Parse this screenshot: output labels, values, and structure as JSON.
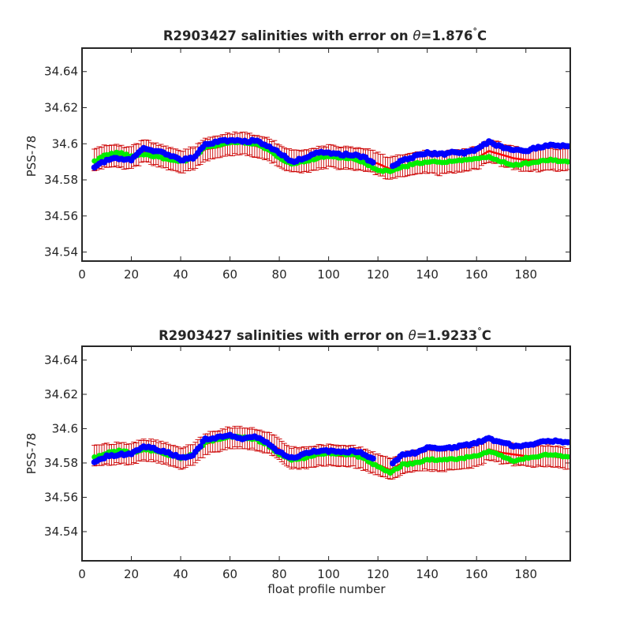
{
  "figure": {
    "panels": [
      {
        "title_main": "R2903427 salinities with error on ",
        "title_theta": "θ",
        "title_value": "=1.876",
        "title_deg": "°",
        "title_unit": "C",
        "ylabel": "PSS-78",
        "xlabel": ""
      },
      {
        "title_main": "R2903427 salinities with error on ",
        "title_theta": "θ",
        "title_value": "=1.9233",
        "title_deg": "°",
        "title_unit": "C",
        "ylabel": "PSS-78",
        "xlabel": "float profile number"
      }
    ]
  },
  "colors": {
    "observed": "#0000ff",
    "mapped": "#ff0000",
    "error_bars": "#cc0000",
    "calibrated": "#00ee00",
    "axes": "#262626"
  },
  "chart_data": [
    {
      "type": "scatter",
      "title": "R2903427 salinities with error on θ=1.876°C",
      "xlabel": "",
      "ylabel": "PSS-78",
      "xlim": [
        0,
        198
      ],
      "ylim": [
        34.535,
        34.653
      ],
      "xticks": [
        0,
        20,
        40,
        60,
        80,
        100,
        120,
        140,
        160,
        180
      ],
      "yticks": [
        34.54,
        34.56,
        34.58,
        34.6,
        34.62,
        34.64
      ],
      "ytick_labels": [
        "34.54",
        "34.56",
        "34.58",
        "34.6",
        "34.62",
        "34.64"
      ],
      "grid": false,
      "x_range": [
        5,
        197
      ],
      "error_halfwidth": 0.006,
      "series": [
        {
          "role": "mapped",
          "points": [
            [
              5,
              34.591
            ],
            [
              10,
              34.593
            ],
            [
              15,
              34.593
            ],
            [
              20,
              34.592
            ],
            [
              25,
              34.596
            ],
            [
              30,
              34.594
            ],
            [
              35,
              34.592
            ],
            [
              40,
              34.59
            ],
            [
              45,
              34.592
            ],
            [
              50,
              34.597
            ],
            [
              55,
              34.598
            ],
            [
              60,
              34.6
            ],
            [
              65,
              34.6
            ],
            [
              70,
              34.599
            ],
            [
              75,
              34.597
            ],
            [
              80,
              34.594
            ],
            [
              85,
              34.59
            ],
            [
              90,
              34.59
            ],
            [
              95,
              34.592
            ],
            [
              100,
              34.593
            ],
            [
              105,
              34.592
            ],
            [
              110,
              34.592
            ],
            [
              115,
              34.591
            ],
            [
              120,
              34.589
            ],
            [
              125,
              34.586
            ],
            [
              130,
              34.588
            ],
            [
              135,
              34.589
            ],
            [
              140,
              34.59
            ],
            [
              145,
              34.589
            ],
            [
              150,
              34.59
            ],
            [
              155,
              34.591
            ],
            [
              160,
              34.592
            ],
            [
              165,
              34.596
            ],
            [
              170,
              34.594
            ],
            [
              175,
              34.592
            ],
            [
              180,
              34.591
            ],
            [
              185,
              34.591
            ],
            [
              190,
              34.592
            ],
            [
              195,
              34.591
            ],
            [
              197,
              34.591
            ]
          ]
        },
        {
          "role": "calibrated",
          "points": [
            [
              5,
              34.59
            ],
            [
              10,
              34.594
            ],
            [
              15,
              34.595
            ],
            [
              20,
              34.593
            ],
            [
              25,
              34.594
            ],
            [
              30,
              34.593
            ],
            [
              35,
              34.591
            ],
            [
              40,
              34.59
            ],
            [
              45,
              34.592
            ],
            [
              50,
              34.598
            ],
            [
              55,
              34.599
            ],
            [
              60,
              34.601
            ],
            [
              65,
              34.601
            ],
            [
              70,
              34.6
            ],
            [
              75,
              34.597
            ],
            [
              80,
              34.592
            ],
            [
              85,
              34.589
            ],
            [
              90,
              34.59
            ],
            [
              95,
              34.592
            ],
            [
              100,
              34.593
            ],
            [
              105,
              34.592
            ],
            [
              110,
              34.592
            ],
            [
              115,
              34.589
            ],
            [
              120,
              34.585
            ],
            [
              125,
              34.585
            ],
            [
              130,
              34.587
            ],
            [
              135,
              34.589
            ],
            [
              140,
              34.59
            ],
            [
              145,
              34.59
            ],
            [
              150,
              34.59
            ],
            [
              155,
              34.591
            ],
            [
              160,
              34.592
            ],
            [
              165,
              34.593
            ],
            [
              170,
              34.59
            ],
            [
              175,
              34.588
            ],
            [
              180,
              34.589
            ],
            [
              185,
              34.59
            ],
            [
              190,
              34.591
            ],
            [
              195,
              34.59
            ],
            [
              197,
              34.59
            ]
          ]
        },
        {
          "role": "observed",
          "points": [
            [
              5,
              34.587
            ],
            [
              10,
              34.591
            ],
            [
              15,
              34.592
            ],
            [
              20,
              34.591
            ],
            [
              25,
              34.598
            ],
            [
              30,
              34.596
            ],
            [
              35,
              34.594
            ],
            [
              40,
              34.591
            ],
            [
              45,
              34.592
            ],
            [
              50,
              34.6
            ],
            [
              55,
              34.601
            ],
            [
              60,
              34.602
            ],
            [
              65,
              34.601
            ],
            [
              70,
              34.602
            ],
            [
              75,
              34.599
            ],
            [
              80,
              34.595
            ],
            [
              85,
              34.59
            ],
            [
              90,
              34.592
            ],
            [
              95,
              34.595
            ],
            [
              100,
              34.595
            ],
            [
              105,
              34.594
            ],
            [
              110,
              34.594
            ],
            [
              115,
              34.592
            ],
            [
              120,
              34.588
            ],
            [
              125,
              34.587
            ],
            [
              130,
              34.591
            ],
            [
              135,
              34.593
            ],
            [
              140,
              34.595
            ],
            [
              145,
              34.594
            ],
            [
              150,
              34.595
            ],
            [
              155,
              34.595
            ],
            [
              160,
              34.597
            ],
            [
              165,
              34.601
            ],
            [
              170,
              34.598
            ],
            [
              175,
              34.597
            ],
            [
              180,
              34.596
            ],
            [
              185,
              34.598
            ],
            [
              190,
              34.599
            ],
            [
              195,
              34.599
            ],
            [
              197,
              34.599
            ]
          ]
        }
      ]
    },
    {
      "type": "scatter",
      "title": "R2903427 salinities with error on θ=1.9233°C",
      "xlabel": "float profile number",
      "ylabel": "PSS-78",
      "xlim": [
        0,
        198
      ],
      "ylim": [
        34.523,
        34.648
      ],
      "xticks": [
        0,
        20,
        40,
        60,
        80,
        100,
        120,
        140,
        160,
        180
      ],
      "yticks": [
        34.54,
        34.56,
        34.58,
        34.6,
        34.62,
        34.64
      ],
      "ytick_labels": [
        "34.54",
        "34.56",
        "34.58",
        "34.6",
        "34.62",
        "34.64"
      ],
      "grid": false,
      "x_range": [
        5,
        197
      ],
      "error_halfwidth": 0.006,
      "series": [
        {
          "role": "mapped",
          "points": [
            [
              5,
              34.584
            ],
            [
              10,
              34.585
            ],
            [
              15,
              34.586
            ],
            [
              20,
              34.585
            ],
            [
              25,
              34.588
            ],
            [
              30,
              34.587
            ],
            [
              35,
              34.585
            ],
            [
              40,
              34.583
            ],
            [
              45,
              34.585
            ],
            [
              50,
              34.591
            ],
            [
              55,
              34.593
            ],
            [
              60,
              34.595
            ],
            [
              65,
              34.595
            ],
            [
              70,
              34.594
            ],
            [
              75,
              34.592
            ],
            [
              80,
              34.588
            ],
            [
              85,
              34.583
            ],
            [
              90,
              34.583
            ],
            [
              95,
              34.584
            ],
            [
              100,
              34.585
            ],
            [
              105,
              34.584
            ],
            [
              110,
              34.584
            ],
            [
              115,
              34.582
            ],
            [
              120,
              34.579
            ],
            [
              125,
              34.576
            ],
            [
              130,
              34.58
            ],
            [
              135,
              34.581
            ],
            [
              140,
              34.582
            ],
            [
              145,
              34.581
            ],
            [
              150,
              34.582
            ],
            [
              155,
              34.583
            ],
            [
              160,
              34.584
            ],
            [
              165,
              34.588
            ],
            [
              170,
              34.586
            ],
            [
              175,
              34.585
            ],
            [
              180,
              34.584
            ],
            [
              185,
              34.584
            ],
            [
              190,
              34.584
            ],
            [
              195,
              34.583
            ],
            [
              197,
              34.583
            ]
          ]
        },
        {
          "role": "calibrated",
          "points": [
            [
              5,
              34.583
            ],
            [
              10,
              34.586
            ],
            [
              15,
              34.587
            ],
            [
              20,
              34.586
            ],
            [
              25,
              34.588
            ],
            [
              30,
              34.587
            ],
            [
              35,
              34.584
            ],
            [
              40,
              34.583
            ],
            [
              45,
              34.585
            ],
            [
              50,
              34.592
            ],
            [
              55,
              34.594
            ],
            [
              60,
              34.595
            ],
            [
              65,
              34.595
            ],
            [
              70,
              34.594
            ],
            [
              75,
              34.591
            ],
            [
              80,
              34.585
            ],
            [
              85,
              34.582
            ],
            [
              90,
              34.583
            ],
            [
              95,
              34.585
            ],
            [
              100,
              34.586
            ],
            [
              105,
              34.585
            ],
            [
              110,
              34.585
            ],
            [
              115,
              34.582
            ],
            [
              120,
              34.578
            ],
            [
              125,
              34.574
            ],
            [
              130,
              34.579
            ],
            [
              135,
              34.58
            ],
            [
              140,
              34.582
            ],
            [
              145,
              34.582
            ],
            [
              150,
              34.582
            ],
            [
              155,
              34.583
            ],
            [
              160,
              34.584
            ],
            [
              165,
              34.587
            ],
            [
              170,
              34.584
            ],
            [
              175,
              34.581
            ],
            [
              180,
              34.583
            ],
            [
              185,
              34.584
            ],
            [
              190,
              34.585
            ],
            [
              195,
              34.584
            ],
            [
              197,
              34.584
            ]
          ]
        },
        {
          "role": "observed",
          "points": [
            [
              5,
              34.58
            ],
            [
              10,
              34.584
            ],
            [
              15,
              34.585
            ],
            [
              20,
              34.585
            ],
            [
              25,
              34.59
            ],
            [
              30,
              34.588
            ],
            [
              35,
              34.586
            ],
            [
              40,
              34.583
            ],
            [
              45,
              34.584
            ],
            [
              50,
              34.594
            ],
            [
              55,
              34.595
            ],
            [
              60,
              34.596
            ],
            [
              65,
              34.594
            ],
            [
              70,
              34.596
            ],
            [
              75,
              34.592
            ],
            [
              80,
              34.586
            ],
            [
              85,
              34.583
            ],
            [
              90,
              34.585
            ],
            [
              95,
              34.587
            ],
            [
              100,
              34.587
            ],
            [
              105,
              34.586
            ],
            [
              110,
              34.587
            ],
            [
              115,
              34.585
            ],
            [
              120,
              34.58
            ],
            [
              125,
              34.578
            ],
            [
              130,
              34.585
            ],
            [
              135,
              34.586
            ],
            [
              140,
              34.589
            ],
            [
              145,
              34.588
            ],
            [
              150,
              34.589
            ],
            [
              155,
              34.59
            ],
            [
              160,
              34.592
            ],
            [
              165,
              34.594
            ],
            [
              170,
              34.592
            ],
            [
              175,
              34.59
            ],
            [
              180,
              34.59
            ],
            [
              185,
              34.592
            ],
            [
              190,
              34.593
            ],
            [
              195,
              34.592
            ],
            [
              197,
              34.592
            ]
          ]
        }
      ]
    }
  ]
}
